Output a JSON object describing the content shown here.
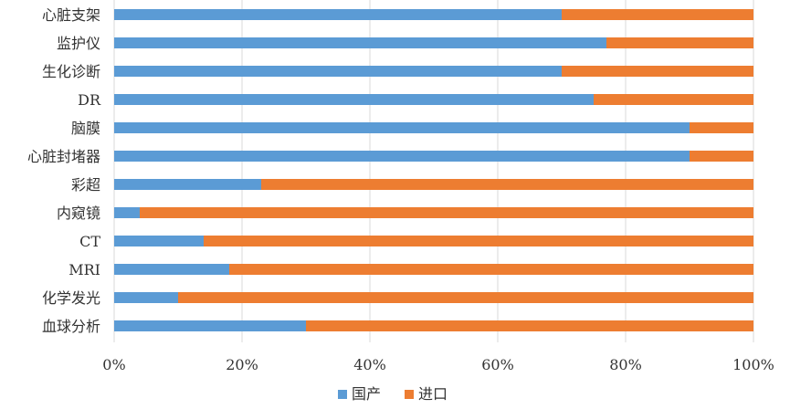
{
  "chart_data": {
    "type": "bar",
    "orientation": "horizontal",
    "stacked": "percent",
    "categories": [
      "心脏支架",
      "监护仪",
      "生化诊断",
      "DR",
      "脑膜",
      "心脏封堵器",
      "彩超",
      "内窥镜",
      "CT",
      "MRI",
      "化学发光",
      "血球分析"
    ],
    "series": [
      {
        "name": "国产",
        "color": "#5B9BD5",
        "values": [
          70,
          77,
          70,
          75,
          90,
          90,
          23,
          4,
          14,
          18,
          10,
          30
        ]
      },
      {
        "name": "进口",
        "color": "#ED7D31",
        "values": [
          30,
          23,
          30,
          25,
          10,
          10,
          77,
          96,
          86,
          82,
          90,
          70
        ]
      }
    ],
    "xlim": [
      0,
      100
    ],
    "xticks": [
      "0%",
      "20%",
      "40%",
      "60%",
      "80%",
      "100%"
    ],
    "grid": true,
    "legend_position": "bottom"
  }
}
